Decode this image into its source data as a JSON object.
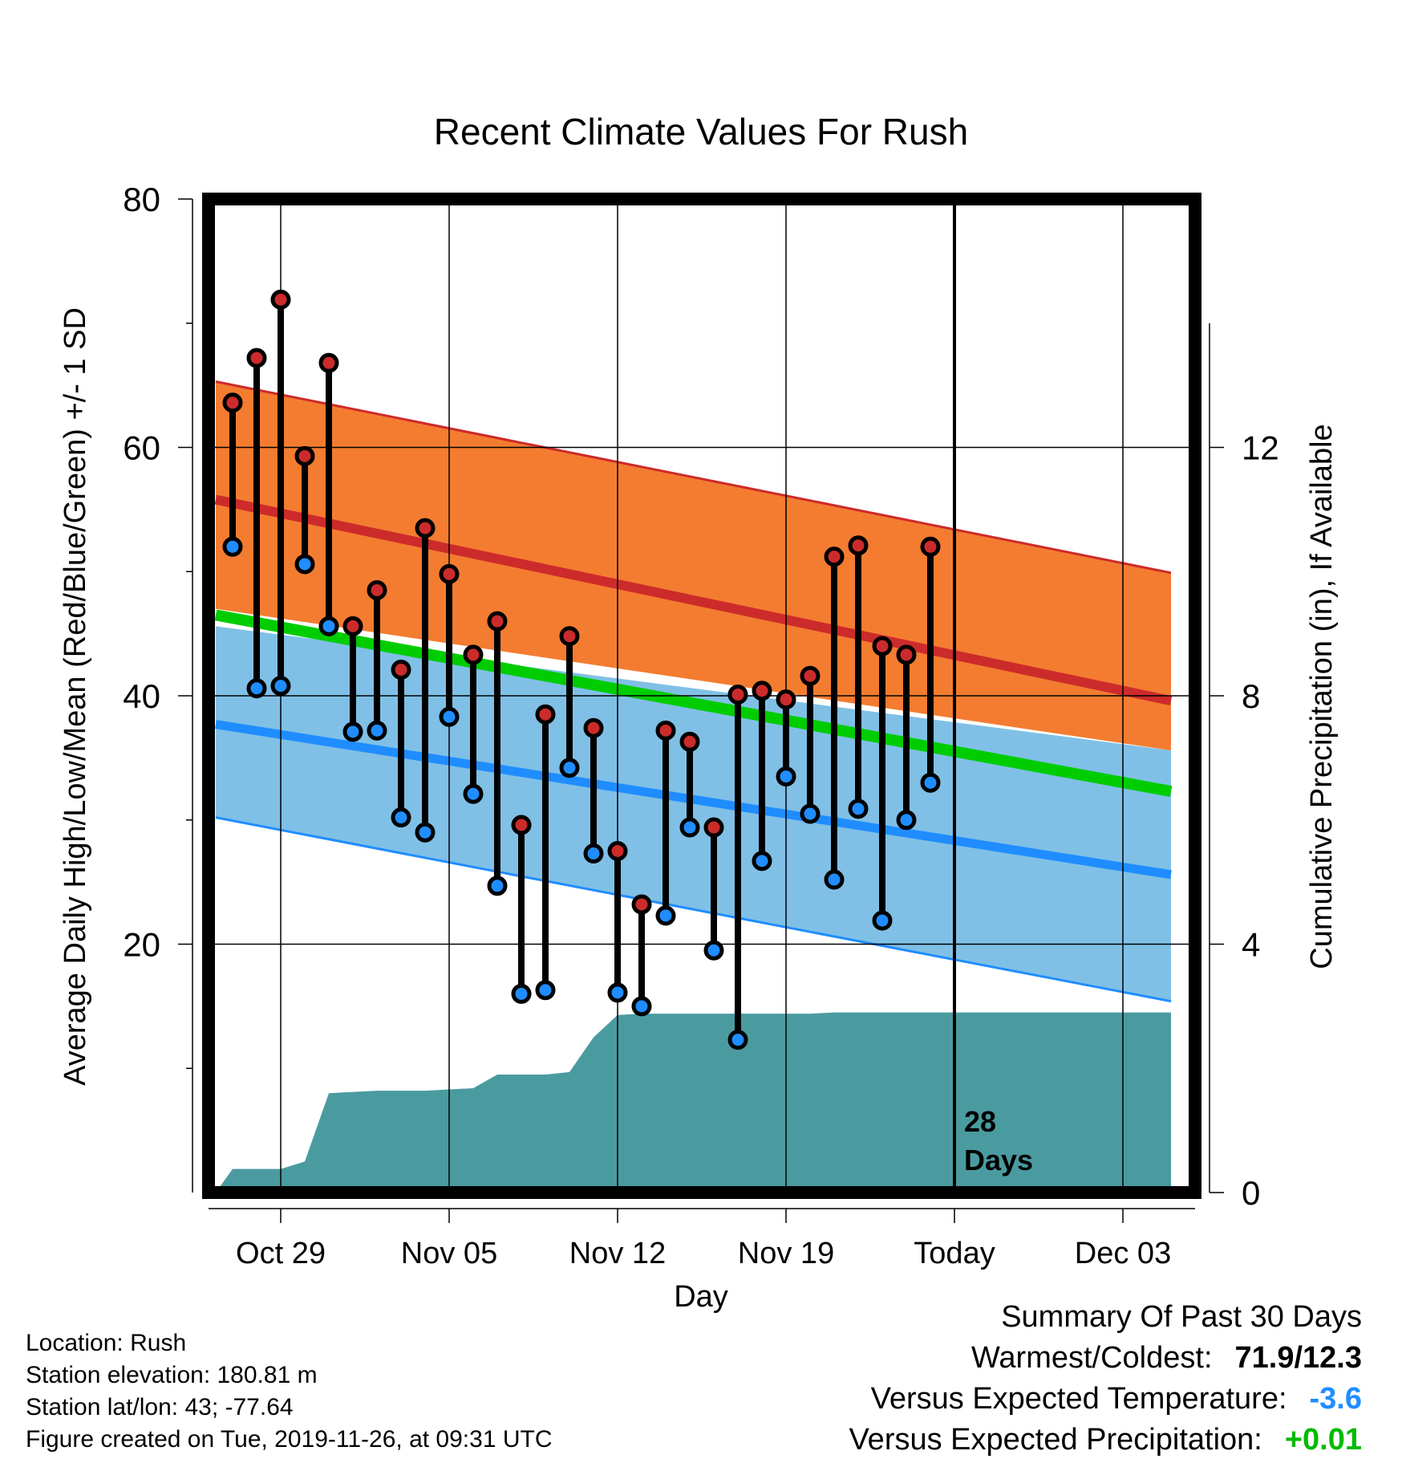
{
  "colors": {
    "high": "#cc2b2b",
    "high_band": "#f47c30",
    "low": "#1f8dff",
    "low_band": "#80c0e6",
    "mean": "#00cc00",
    "above_normal": "#981b1b",
    "precip": "#4a9ba0",
    "warm_dot": "#cc2b2b",
    "cold_dot": "#1f8dff",
    "temp_anom": "#1f8dff",
    "precip_anom": "#00bb00"
  },
  "chart_data": {
    "type": "line",
    "title": "Recent Climate Values For Rush",
    "xlabel": "Day",
    "ylabel": "Average Daily High/Low/Mean (Red/Blue/Green) +/- 1 SD",
    "y2label": "Cumulative Precipitation (in), If Available",
    "xlim": [
      -3.1,
      37.4
    ],
    "ylim": [
      0,
      80
    ],
    "y2lim": [
      0,
      16
    ],
    "yticks": [
      20,
      40,
      60,
      80
    ],
    "y2ticks": [
      0,
      4,
      8,
      12
    ],
    "xticks": [
      {
        "x": 0,
        "label": "Oct 29"
      },
      {
        "x": 7,
        "label": "Nov 05"
      },
      {
        "x": 14,
        "label": "Nov 12"
      },
      {
        "x": 21,
        "label": "Nov 19"
      },
      {
        "x": 28,
        "label": "Today"
      },
      {
        "x": 35,
        "label": "Dec 03"
      }
    ],
    "today_x": 28,
    "today_label": [
      "28",
      "Days"
    ],
    "grid": true,
    "normals": {
      "x": [
        -2.7,
        37
      ],
      "high_mean": [
        55.8,
        39.6
      ],
      "high_upper": [
        65.3,
        49.9
      ],
      "high_lower": [
        47.0,
        35.6
      ],
      "low_mean": [
        37.7,
        25.6
      ],
      "low_upper": [
        45.6,
        35.6
      ],
      "low_lower": [
        30.2,
        15.4
      ],
      "mean_mean": [
        46.5,
        32.3
      ]
    },
    "observed": {
      "x": [
        -2,
        -1,
        0,
        1,
        2,
        3,
        4,
        5,
        6,
        7,
        8,
        9,
        10,
        11,
        12,
        13,
        14,
        15,
        16,
        17,
        18,
        19,
        20,
        21,
        22,
        23,
        24,
        25,
        26,
        27
      ],
      "high": [
        63.6,
        67.2,
        71.9,
        59.3,
        66.8,
        45.6,
        48.5,
        42.1,
        53.5,
        49.8,
        43.3,
        46.0,
        29.6,
        38.5,
        44.8,
        37.4,
        27.5,
        23.2,
        37.2,
        36.3,
        29.4,
        40.1,
        40.4,
        39.7,
        41.6,
        51.2,
        52.1,
        44.0,
        43.3,
        52.0
      ],
      "low": [
        52.0,
        40.6,
        40.8,
        50.6,
        45.6,
        37.1,
        37.2,
        30.2,
        29.0,
        38.3,
        32.1,
        24.7,
        16.0,
        16.3,
        34.2,
        27.3,
        16.1,
        15.0,
        22.3,
        29.4,
        19.5,
        12.3,
        26.7,
        33.5,
        30.5,
        25.2,
        30.9,
        21.9,
        30.0,
        33.0
      ]
    },
    "precip_cumulative": {
      "x": [
        -2.7,
        -2,
        -1,
        0,
        1,
        2,
        3,
        4,
        5,
        6,
        7,
        8,
        9,
        10,
        11,
        12,
        13,
        14,
        15,
        16,
        17,
        18,
        19,
        20,
        21,
        22,
        23,
        24,
        25,
        26,
        27,
        28,
        37
      ],
      "values": [
        0,
        0.38,
        0.38,
        0.38,
        0.5,
        1.6,
        1.62,
        1.64,
        1.64,
        1.64,
        1.66,
        1.68,
        1.9,
        1.9,
        1.9,
        1.94,
        2.5,
        2.86,
        2.88,
        2.88,
        2.88,
        2.88,
        2.88,
        2.88,
        2.88,
        2.88,
        2.9,
        2.9,
        2.9,
        2.9,
        2.9,
        2.9,
        2.9
      ]
    }
  },
  "info": {
    "location": "Location: Rush",
    "elevation": "Station elevation: 180.81 m",
    "latlon": "Station lat/lon: 43; -77.64",
    "created": "Figure created on Tue, 2019-11-26, at 09:31 UTC"
  },
  "summary": {
    "title": "Summary Of Past 30 Days",
    "warm_cold_label": "Warmest/Coldest:",
    "warm_cold_value": "71.9/12.3",
    "temp_label": "Versus Expected Temperature:",
    "temp_value": "-3.6",
    "precip_label": "Versus Expected Precipitation:",
    "precip_value": "+0.01"
  }
}
